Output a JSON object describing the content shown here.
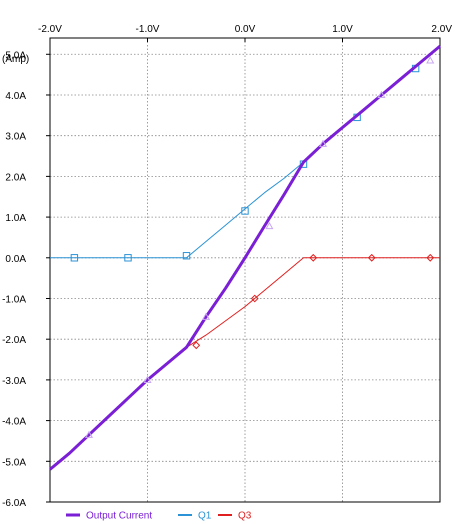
{
  "chart_data": {
    "type": "line",
    "ylabel": "(Amp)",
    "xlim": [
      -2.0,
      2.0
    ],
    "ylim": [
      -6.0,
      5.4
    ],
    "xticks": [
      -2.0,
      -1.0,
      0.0,
      1.0,
      2.0
    ],
    "xtick_labels": [
      "-2.0V",
      "-1.0V",
      "0.0V",
      "1.0V",
      "2.0V"
    ],
    "yticks": [
      5.0,
      4.0,
      3.0,
      2.0,
      1.0,
      0.0,
      -1.0,
      -2.0,
      -3.0,
      -4.0,
      -5.0,
      -6.0
    ],
    "ytick_labels": [
      "5.0A",
      "4.0A",
      "3.0A",
      "2.0A",
      "1.0A",
      "0.0A",
      "-1.0A",
      "-2.0A",
      "-3.0A",
      "-4.0A",
      "-5.0A",
      "-6.0A"
    ],
    "grid": true,
    "legend_position": "bottom",
    "series": [
      {
        "name": "Output Current",
        "color": "#7b1fd6",
        "marker": "triangle",
        "x": [
          -2.0,
          -1.8,
          -1.6,
          -1.4,
          -1.2,
          -1.0,
          -0.8,
          -0.6,
          -0.4,
          -0.2,
          0.0,
          0.2,
          0.4,
          0.6,
          0.8,
          1.0,
          1.2,
          1.4,
          1.6,
          1.8,
          2.0
        ],
        "y": [
          -5.2,
          -4.8,
          -4.35,
          -3.9,
          -3.45,
          -3.0,
          -2.6,
          -2.2,
          -1.45,
          -0.75,
          0.0,
          0.78,
          1.55,
          2.35,
          2.8,
          3.2,
          3.6,
          4.0,
          4.4,
          4.8,
          5.2
        ],
        "markers_x": [
          -1.6,
          -1.0,
          -0.4,
          0.25,
          0.8,
          1.4,
          1.9
        ],
        "markers_y": [
          -4.35,
          -3.0,
          -1.45,
          0.78,
          2.8,
          4.0,
          4.85
        ]
      },
      {
        "name": "Q1",
        "color": "#2b93d6",
        "marker": "square",
        "x": [
          -2.0,
          -1.8,
          -1.6,
          -1.4,
          -1.2,
          -1.0,
          -0.8,
          -0.6,
          -0.4,
          -0.2,
          0.0,
          0.2,
          0.4,
          0.6,
          0.8,
          1.0,
          1.2,
          1.4,
          1.6,
          1.8,
          2.0
        ],
        "y": [
          0.0,
          0.0,
          0.0,
          0.0,
          0.0,
          0.0,
          0.0,
          0.0,
          0.4,
          0.8,
          1.2,
          1.6,
          1.95,
          2.35,
          2.8,
          3.2,
          3.6,
          4.0,
          4.4,
          4.8,
          5.2
        ],
        "markers_x": [
          -1.75,
          -1.2,
          -0.6,
          0.0,
          0.6,
          1.15,
          1.75
        ],
        "markers_y": [
          0.0,
          0.0,
          0.05,
          1.15,
          2.3,
          3.45,
          4.65
        ]
      },
      {
        "name": "Q3",
        "color": "#e02020",
        "marker": "diamond",
        "x": [
          -2.0,
          -1.8,
          -1.6,
          -1.4,
          -1.2,
          -1.0,
          -0.8,
          -0.6,
          -0.4,
          -0.2,
          0.0,
          0.2,
          0.4,
          0.6,
          0.8,
          1.0,
          1.2,
          1.4,
          1.6,
          1.8,
          2.0
        ],
        "y": [
          -5.2,
          -4.8,
          -4.35,
          -3.9,
          -3.45,
          -3.0,
          -2.6,
          -2.2,
          -1.9,
          -1.55,
          -1.2,
          -0.8,
          -0.4,
          0.0,
          0.0,
          0.0,
          0.0,
          0.0,
          0.0,
          0.0,
          0.0
        ],
        "markers_x": [
          -0.5,
          0.1,
          0.7,
          1.3,
          1.9
        ],
        "markers_y": [
          -2.15,
          -1.0,
          0.0,
          0.0,
          0.0
        ]
      }
    ]
  }
}
